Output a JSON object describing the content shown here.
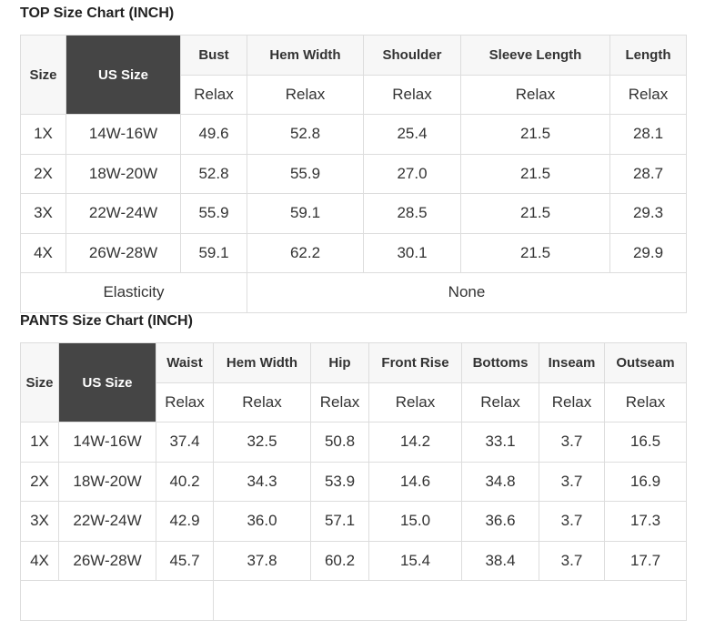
{
  "top": {
    "title": "TOP Size Chart (INCH)",
    "headers": [
      "Size",
      "US Size",
      "Bust",
      "Hem Width",
      "Shoulder",
      "Sleeve Length",
      "Length"
    ],
    "subheaders": [
      "Relax",
      "Relax",
      "Relax",
      "Relax",
      "Relax"
    ],
    "rows": [
      [
        "1X",
        "14W-16W",
        "49.6",
        "52.8",
        "25.4",
        "21.5",
        "28.1"
      ],
      [
        "2X",
        "18W-20W",
        "52.8",
        "55.9",
        "27.0",
        "21.5",
        "28.7"
      ],
      [
        "3X",
        "22W-24W",
        "55.9",
        "59.1",
        "28.5",
        "21.5",
        "29.3"
      ],
      [
        "4X",
        "26W-28W",
        "59.1",
        "62.2",
        "30.1",
        "21.5",
        "29.9"
      ]
    ],
    "elasticity_label": "Elasticity",
    "elasticity_value": "None"
  },
  "pants": {
    "title": "PANTS Size Chart (INCH)",
    "headers": [
      "Size",
      "US Size",
      "Waist",
      "Hem Width",
      "Hip",
      "Front Rise",
      "Bottoms",
      "Inseam",
      "Outseam"
    ],
    "subheaders": [
      "Relax",
      "Relax",
      "Relax",
      "Relax",
      "Relax",
      "Relax",
      "Relax"
    ],
    "rows": [
      [
        "1X",
        "14W-16W",
        "37.4",
        "32.5",
        "50.8",
        "14.2",
        "33.1",
        "3.7",
        "16.5"
      ],
      [
        "2X",
        "18W-20W",
        "40.2",
        "34.3",
        "53.9",
        "14.6",
        "34.8",
        "3.7",
        "16.9"
      ],
      [
        "3X",
        "22W-24W",
        "42.9",
        "36.0",
        "57.1",
        "15.0",
        "36.6",
        "3.7",
        "17.3"
      ],
      [
        "4X",
        "26W-28W",
        "45.7",
        "37.8",
        "60.2",
        "15.4",
        "38.4",
        "3.7",
        "17.7"
      ]
    ]
  },
  "colors": {
    "us_size_header_bg": "#454545",
    "header_bg": "#f7f7f7",
    "border": "#dddddd"
  }
}
